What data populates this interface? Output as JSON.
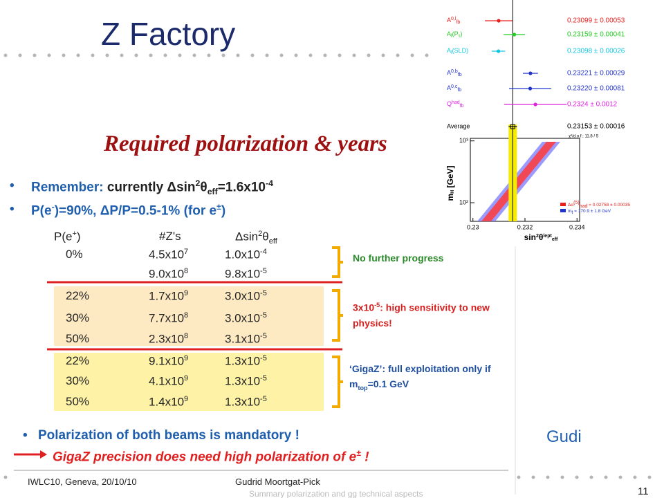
{
  "title": "Z Factory",
  "slide": {
    "heading": "Required polarization & years",
    "bullets": [
      [
        "Remember:",
        " currently Δsin",
        "2",
        "θ",
        "eff",
        "=1.6x10",
        "-4"
      ],
      [
        "P(e",
        "-",
        ")=90%, ΔP/P=0.5-1% (for e",
        "±",
        ")"
      ]
    ],
    "table": {
      "header": [
        [
          "P(e",
          "+",
          ")"
        ],
        [
          "#Z's"
        ],
        [
          "Δsin",
          "2",
          "θ",
          "eff"
        ]
      ],
      "rows": [
        [
          "0%",
          [
            "4.5x10",
            "7"
          ],
          [
            "1.0x10",
            "-4"
          ]
        ],
        [
          null,
          [
            "9.0x10",
            "8"
          ],
          [
            "9.8x10",
            "-5"
          ]
        ],
        [
          "22%",
          [
            "1.7x10",
            "9"
          ],
          [
            "3.0x10",
            "-5"
          ]
        ],
        [
          "30%",
          [
            "7.7x10",
            "8"
          ],
          [
            "3.0x10",
            "-5"
          ]
        ],
        [
          "50%",
          [
            "2.3x10",
            "8"
          ],
          [
            "3.1x10",
            "-5"
          ]
        ],
        [
          "22%",
          [
            "9.1x10",
            "9"
          ],
          [
            "1.3x10",
            "-5"
          ]
        ],
        [
          "30%",
          [
            "4.1x10",
            "9"
          ],
          [
            "1.3x10",
            "-5"
          ]
        ],
        [
          "50%",
          [
            "1.4x10",
            "9"
          ],
          [
            "1.3x10",
            "-5"
          ]
        ]
      ]
    },
    "notes": [
      [
        "No further progress"
      ],
      [
        "3x10",
        "-5",
        ": high sensitivity to new",
        "physics!"
      ],
      [
        "‘GigaZ’: full exploitation only if",
        "m",
        "top",
        "=0.1 GeV"
      ]
    ],
    "conclusions": [
      "Polarization of both beams is mandatory !",
      [
        "GigaZ precision does need high polarization of e",
        "±",
        " !"
      ]
    ],
    "footer": {
      "event": "IWLC10, Geneva, 20/10/10",
      "author": "Gudrid Moortgat-Pick",
      "subtitle": "Summary polarization and gg technical aspects"
    }
  },
  "plot": {
    "measurements": [
      {
        "name": [
          "A",
          "0,l",
          "fb"
        ],
        "value": 0.23099,
        "error": 0.00053,
        "label": "0.23099 ± 0.00053",
        "color": "#e8201c"
      },
      {
        "name": [
          "A",
          "l",
          "(P",
          "τ",
          ")"
        ],
        "value": 0.23159,
        "error": 0.00041,
        "label": "0.23159 ± 0.00041",
        "color": "#22cc22"
      },
      {
        "name": [
          "A",
          "l",
          "(SLD)"
        ],
        "value": 0.23098,
        "error": 0.00026,
        "label": "0.23098 ± 0.00026",
        "color": "#12c8e0"
      },
      {
        "name": [
          "A",
          "0,b",
          "fb"
        ],
        "value": 0.23221,
        "error": 0.00029,
        "label": "0.23221 ± 0.00029",
        "color": "#2233cc"
      },
      {
        "name": [
          "A",
          "0,c",
          "fb"
        ],
        "value": 0.2322,
        "error": 0.00081,
        "label": "0.23220 ± 0.00081",
        "color": "#2233cc"
      },
      {
        "name": [
          "Q",
          "had",
          "fb"
        ],
        "value": 0.2324,
        "error": 0.0012,
        "label": "0.2324 ± 0.0012",
        "color": "#dd22dd"
      }
    ],
    "average": {
      "name": "Average",
      "value": 0.23153,
      "error": 0.00016,
      "label": "0.23153 ± 0.00016"
    },
    "chi2": "χ²/d.o.f.: 11.8 / 5",
    "xlim": [
      0.2299,
      0.2341
    ],
    "xticks": [
      0.23,
      0.232,
      0.234
    ],
    "ylim": [
      50,
      1100
    ],
    "log_y": true,
    "yticks": [
      {
        "value": 100,
        "label": "10²"
      },
      {
        "value": 1000,
        "label": "10³"
      }
    ],
    "xlabel": [
      "sin",
      "2",
      "θ",
      "lept",
      "eff"
    ],
    "ylabel": [
      "m",
      "H",
      " [GeV]"
    ],
    "legend": [
      [
        "Δα",
        "(5)",
        "had",
        " = 0.02758 ± 0.00035"
      ],
      [
        "m",
        "t",
        " = 170.9 ± 1.8 GeV"
      ]
    ]
  },
  "speaker": "Gudi",
  "page": "11"
}
